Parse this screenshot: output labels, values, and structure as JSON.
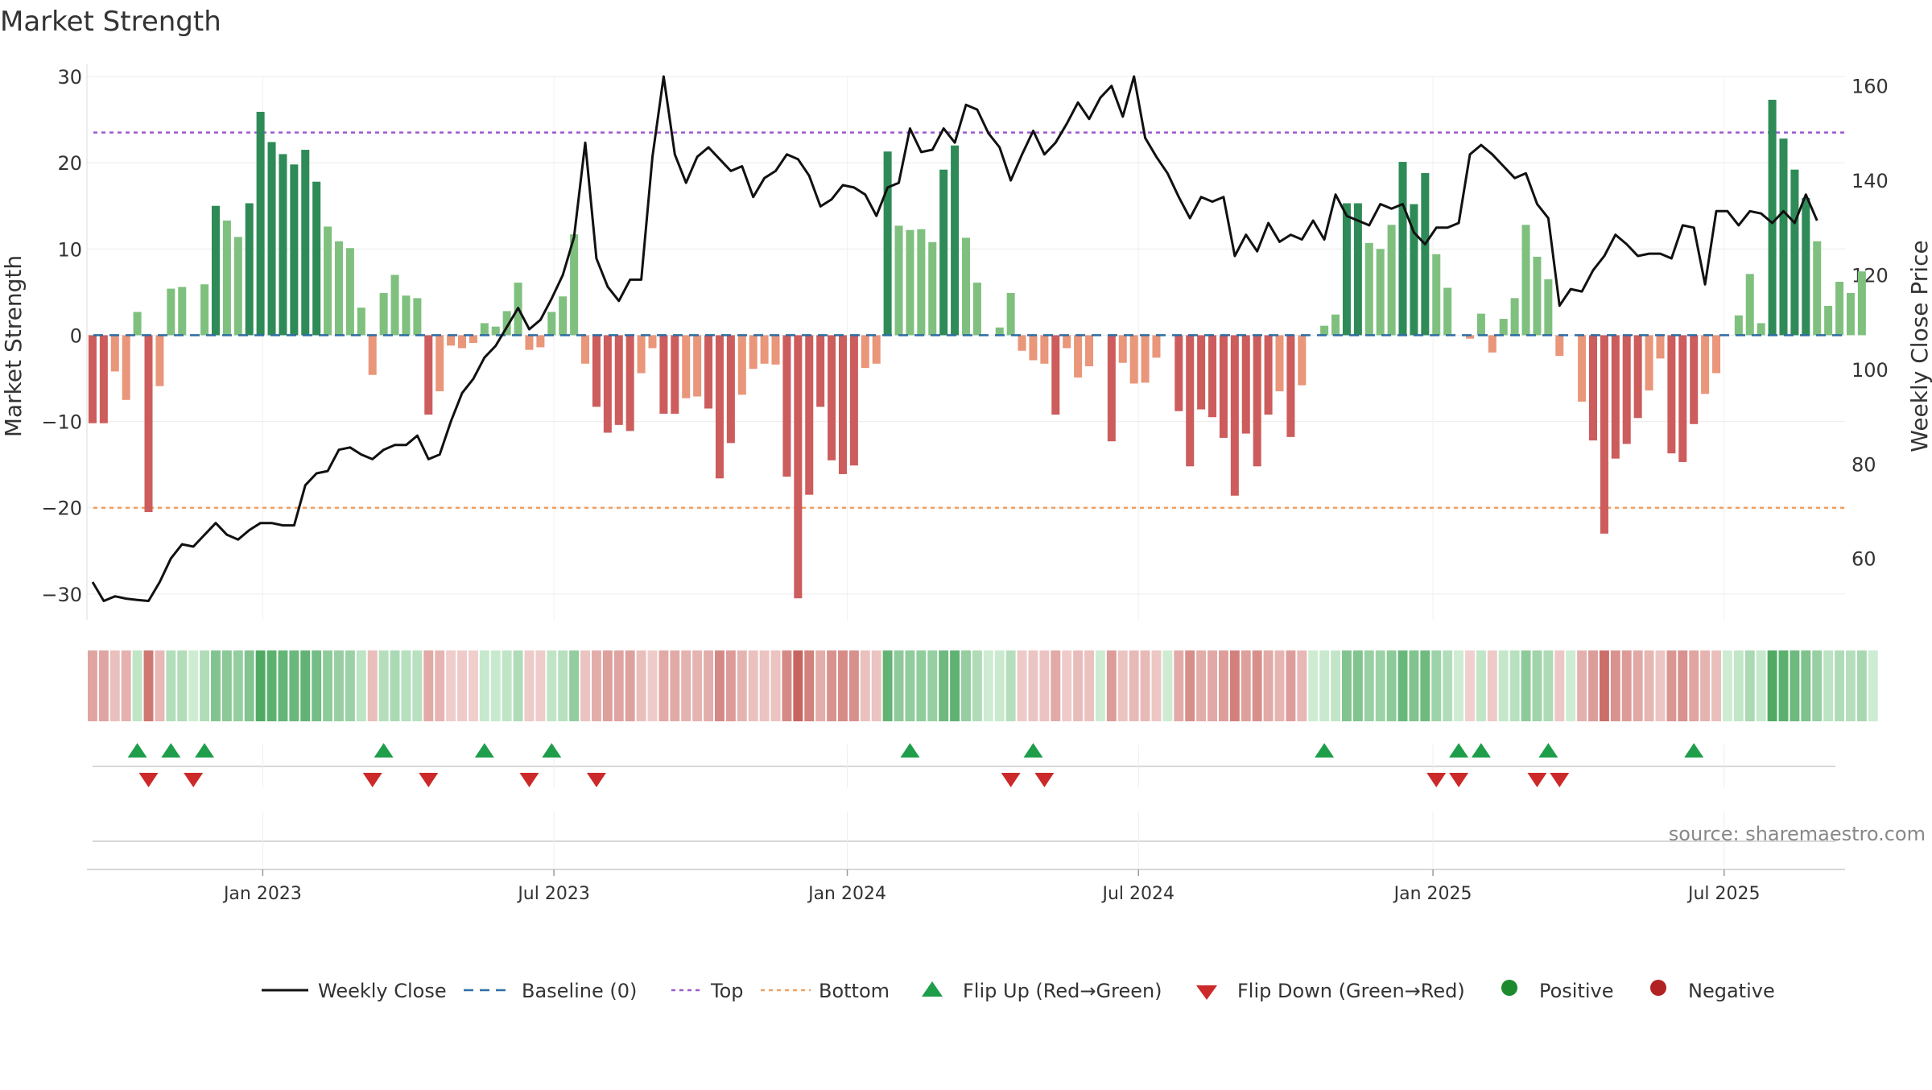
{
  "chart_data": {
    "type": "bar",
    "title": "Market Strength",
    "ylabel": "Market Strength",
    "y2label": "Weekly Close Price",
    "ylim": [
      -33,
      30
    ],
    "y2lim": [
      47,
      162
    ],
    "y_ticks": [
      30,
      20,
      10,
      0,
      -10,
      -20,
      -30
    ],
    "y_tick_labels": [
      "30",
      "20",
      "10",
      "0",
      "−10",
      "−20",
      "−30"
    ],
    "y2_ticks": [
      160,
      140,
      120,
      100,
      80,
      60
    ],
    "y2_tick_labels": [
      "160",
      "140",
      "120",
      "100",
      "80",
      "60"
    ],
    "x_tick_positions": [
      15.2,
      41.2,
      67.4,
      93.4,
      119.7,
      145.7
    ],
    "x_tick_labels": [
      "Jan 2023",
      "Jul 2023",
      "Jan 2024",
      "Jul 2024",
      "Jan 2025",
      "Jul 2025"
    ],
    "grid": true,
    "top_line": 23.5,
    "bottom_line": -20,
    "baseline": 0,
    "colors": {
      "weekly_close": "#111111",
      "baseline": "#2e6da4",
      "top": "#9b59d0",
      "bottom": "#f0a060",
      "flip_up": "#1e9e4a",
      "flip_down": "#cc2a2a",
      "positive": "#1e8a2e",
      "negative": "#b22222",
      "strong_pos": "#2e8b57",
      "weak_pos": "#7fc07f",
      "strong_neg": "#cd5c5c",
      "weak_neg": "#e9967a"
    },
    "week_index": [
      0,
      1,
      2,
      3,
      4,
      5,
      6,
      7,
      8,
      9,
      10,
      11,
      12,
      13,
      14,
      15,
      16,
      17,
      18,
      19,
      20,
      21,
      22,
      23,
      24,
      25,
      26,
      27,
      28,
      29,
      30,
      31,
      32,
      33,
      34,
      35,
      36,
      37,
      38,
      39,
      40,
      41,
      42,
      43,
      44,
      45,
      46,
      47,
      48,
      49,
      50,
      51,
      52,
      53,
      54,
      55,
      56,
      57,
      58,
      59,
      60,
      61,
      62,
      63,
      64,
      65,
      66,
      67,
      68,
      69,
      70,
      71,
      72,
      73,
      74,
      75,
      76,
      77,
      78,
      79,
      80,
      81,
      82,
      83,
      84,
      85,
      86,
      87,
      88,
      89,
      90,
      91,
      92,
      93,
      94,
      95,
      96,
      97,
      98,
      99,
      100,
      101,
      102,
      103,
      104,
      105,
      106,
      107,
      108,
      109,
      110,
      111,
      112,
      113,
      114,
      115,
      116,
      117,
      118,
      119,
      120,
      121,
      122,
      123,
      124,
      125,
      126,
      127,
      128,
      129,
      130,
      131,
      132,
      133,
      134,
      135,
      136,
      137,
      138,
      139,
      140,
      141,
      142,
      143,
      144,
      145,
      146,
      147,
      148,
      149,
      150,
      151,
      152,
      153,
      154,
      155,
      156
    ],
    "series": [
      {
        "name": "Market Strength",
        "values": [
          -10.2,
          -10.2,
          -4.2,
          -7.5,
          2.7,
          -20.5,
          -5.9,
          5.4,
          5.6,
          0,
          5.9,
          15,
          13.3,
          11.4,
          15.3,
          25.9,
          22.4,
          21,
          19.8,
          21.5,
          17.8,
          12.6,
          10.9,
          10.1,
          3.2,
          -4.6,
          4.9,
          7,
          4.6,
          4.3,
          -9.2,
          -6.5,
          -1.2,
          -1.5,
          -0.9,
          1.4,
          1,
          2.8,
          6.1,
          -1.7,
          -1.4,
          2.7,
          4.5,
          11.7,
          -3.3,
          -8.3,
          -11.3,
          -10.4,
          -11.1,
          -4.4,
          -1.5,
          -9.1,
          -9.1,
          -7.3,
          -7.1,
          -8.5,
          -16.6,
          -12.5,
          -6.9,
          -3.9,
          -3.3,
          -3.4,
          -16.4,
          -30.5,
          -18.5,
          -8.3,
          -14.5,
          -16.1,
          -15.1,
          -3.8,
          -3.3,
          21.3,
          12.7,
          12.2,
          12.3,
          10.8,
          19.2,
          22,
          11.3,
          6.1,
          0,
          0.9,
          4.9,
          -1.8,
          -2.9,
          -3.3,
          -9.2,
          -1.5,
          -4.9,
          -3.6,
          0,
          -12.3,
          -3.2,
          -5.6,
          -5.5,
          -2.6,
          0,
          -8.8,
          -15.2,
          -8.6,
          -9.5,
          -11.9,
          -18.6,
          -11.4,
          -15.2,
          -9.2,
          -6.5,
          -11.8,
          -5.8,
          0,
          1.1,
          2.4,
          15.3,
          15.3,
          10.7,
          10,
          12.8,
          20.1,
          15.2,
          18.8,
          9.4,
          5.5,
          0,
          -0.4,
          2.5,
          -2,
          1.9,
          4.3,
          12.8,
          9.1,
          6.5,
          -2.4,
          0,
          -7.7,
          -12.2,
          -23,
          -14.3,
          -12.6,
          -9.6,
          -6.4,
          -2.7,
          -13.7,
          -14.7,
          -10.3,
          -6.8,
          -4.4,
          0,
          2.3,
          7.1,
          1.4,
          27.3,
          22.8,
          19.2,
          15.9,
          10.9,
          3.4,
          6.2,
          4.9,
          7.4,
          0
        ]
      },
      {
        "name": "Weekly Close",
        "values": [
          55,
          51,
          52,
          51.5,
          51.2,
          51,
          55,
          60,
          63,
          62.5,
          65,
          67.5,
          65,
          64,
          66,
          67.5,
          67.5,
          67,
          67,
          75.5,
          78,
          78.5,
          83,
          83.5,
          82,
          81,
          83,
          84,
          84,
          86,
          81,
          82,
          89,
          95,
          98,
          102.5,
          105,
          109,
          113,
          108.5,
          110.5,
          115,
          120,
          128,
          148,
          123.5,
          117.5,
          114.5,
          119,
          119,
          145,
          162,
          145.5,
          139.5,
          145,
          147,
          144.5,
          142,
          143,
          136.5,
          140.5,
          142,
          145.5,
          144.5,
          141,
          134.5,
          136,
          139,
          138.5,
          137,
          132.5,
          138.5,
          139.5,
          151,
          146,
          146.5,
          151,
          148,
          156,
          155,
          150,
          147,
          140,
          145.5,
          150.5,
          145.5,
          148,
          152,
          156.5,
          153,
          157.5,
          160,
          153.5,
          162,
          149,
          145,
          141.5,
          136.5,
          132,
          136.5,
          135.5,
          136.5,
          124,
          128.5,
          125,
          131,
          127,
          128.5,
          127.5,
          131.5,
          127.5,
          137,
          132.5,
          131.5,
          130.5,
          135,
          134,
          135,
          129,
          126.5,
          130,
          130,
          131,
          145.5,
          147.5,
          145.5,
          143,
          140.5,
          141.5,
          135,
          132,
          113.5,
          117,
          116.5,
          121,
          124,
          128.5,
          126.5,
          124,
          124.5,
          124.5,
          123.5,
          130.5,
          130,
          118,
          133.5,
          133.5,
          130.5,
          133.5,
          133,
          131,
          133.5,
          131,
          137,
          131.5
        ]
      },
      {
        "name": "Flip Up (Red→Green)",
        "weeks": [
          4,
          7,
          10,
          26,
          35,
          41,
          73,
          84,
          110,
          122,
          124,
          130,
          143
        ]
      },
      {
        "name": "Flip Down (Green→Red)",
        "weeks": [
          5,
          9,
          25,
          30,
          39,
          45,
          82,
          85,
          120,
          122,
          129,
          131
        ]
      }
    ],
    "legend": {
      "position": "bottom",
      "entries": [
        "Weekly Close",
        "Baseline (0)",
        "Top",
        "Bottom",
        "Flip Up (Red→Green)",
        "Flip Down (Green→Red)",
        "Positive",
        "Negative"
      ]
    },
    "annotation": "source: sharemaestro.com"
  }
}
